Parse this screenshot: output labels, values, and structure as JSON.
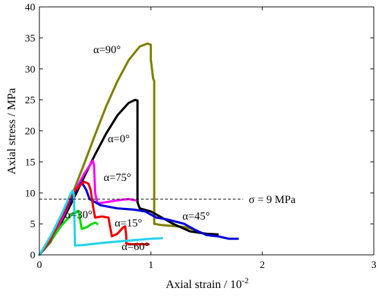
{
  "chart_data": {
    "type": "line",
    "xlabel": "Axial strain / 10",
    "xlabel_exp": "-2",
    "ylabel": "Axial stress / MPa",
    "xlim": [
      0,
      3
    ],
    "ylim": [
      0,
      40
    ],
    "x_ticks": [
      "0",
      "1",
      "2",
      "3"
    ],
    "y_ticks": [
      "0",
      "5",
      "10",
      "15",
      "20",
      "25",
      "30",
      "35",
      "40"
    ],
    "grid": false,
    "reference_line": {
      "y": 9,
      "label": "σ = 9 MPa"
    },
    "series": [
      {
        "name": "α=90°",
        "color": "#808000",
        "points": [
          [
            0,
            0
          ],
          [
            0.1,
            2.2
          ],
          [
            0.2,
            5.8
          ],
          [
            0.3,
            10.0
          ],
          [
            0.4,
            14.6
          ],
          [
            0.5,
            19.4
          ],
          [
            0.6,
            24.0
          ],
          [
            0.7,
            28.0
          ],
          [
            0.8,
            31.4
          ],
          [
            0.9,
            33.6
          ],
          [
            0.97,
            34.1
          ],
          [
            1.0,
            33.9
          ],
          [
            1.0,
            31.5
          ],
          [
            1.02,
            28.5
          ],
          [
            1.03,
            28.0
          ],
          [
            1.03,
            5.0
          ],
          [
            1.1,
            4.8
          ],
          [
            1.3,
            4.5
          ],
          [
            1.4,
            4.0
          ]
        ]
      },
      {
        "name": "α=0°",
        "color": "#000000",
        "points": [
          [
            0,
            0
          ],
          [
            0.1,
            2.1
          ],
          [
            0.2,
            5.3
          ],
          [
            0.3,
            8.8
          ],
          [
            0.4,
            12.5
          ],
          [
            0.5,
            16.2
          ],
          [
            0.6,
            19.6
          ],
          [
            0.7,
            22.5
          ],
          [
            0.8,
            24.5
          ],
          [
            0.86,
            25.0
          ],
          [
            0.88,
            24.9
          ],
          [
            0.88,
            8.5
          ],
          [
            0.9,
            7.5
          ],
          [
            1.0,
            7.0
          ],
          [
            1.1,
            6.0
          ],
          [
            1.2,
            5.0
          ],
          [
            1.35,
            3.8
          ],
          [
            1.5,
            3.4
          ],
          [
            1.6,
            3.3
          ]
        ]
      },
      {
        "name": "α=75°",
        "color": "#ff00ff",
        "points": [
          [
            0,
            0
          ],
          [
            0.1,
            2.3
          ],
          [
            0.2,
            5.7
          ],
          [
            0.3,
            9.6
          ],
          [
            0.4,
            13.0
          ],
          [
            0.48,
            15.2
          ],
          [
            0.49,
            14.5
          ],
          [
            0.5,
            10.0
          ],
          [
            0.52,
            8.3
          ],
          [
            0.6,
            8.5
          ],
          [
            0.7,
            8.8
          ],
          [
            0.8,
            9.0
          ],
          [
            0.86,
            8.8
          ]
        ]
      },
      {
        "name": "α=45°",
        "color": "#0000dd",
        "points": [
          [
            0,
            0
          ],
          [
            0.1,
            2.6
          ],
          [
            0.2,
            6.2
          ],
          [
            0.3,
            9.6
          ],
          [
            0.38,
            11.7
          ],
          [
            0.42,
            10.5
          ],
          [
            0.45,
            9.0
          ],
          [
            0.55,
            8.0
          ],
          [
            0.7,
            7.5
          ],
          [
            0.85,
            7.3
          ],
          [
            0.95,
            7.0
          ],
          [
            1.05,
            6.0
          ],
          [
            1.15,
            5.7
          ],
          [
            1.3,
            5.0
          ],
          [
            1.4,
            4.0
          ],
          [
            1.5,
            3.2
          ],
          [
            1.6,
            3.0
          ],
          [
            1.7,
            2.6
          ],
          [
            1.78,
            2.6
          ]
        ]
      },
      {
        "name": "α=30°",
        "color": "#00dd00",
        "points": [
          [
            0,
            0
          ],
          [
            0.1,
            2.2
          ],
          [
            0.2,
            4.8
          ],
          [
            0.3,
            6.7
          ],
          [
            0.35,
            7.1
          ],
          [
            0.37,
            5.2
          ],
          [
            0.38,
            4.2
          ],
          [
            0.4,
            4.3
          ],
          [
            0.43,
            4.5
          ],
          [
            0.46,
            4.9
          ],
          [
            0.5,
            5.2
          ],
          [
            0.52,
            5.0
          ]
        ]
      },
      {
        "name": "α=15°",
        "color": "#ee0000",
        "points": [
          [
            0,
            0
          ],
          [
            0.1,
            2.4
          ],
          [
            0.2,
            6.2
          ],
          [
            0.3,
            10.0
          ],
          [
            0.4,
            11.8
          ],
          [
            0.44,
            11.5
          ],
          [
            0.46,
            10.5
          ],
          [
            0.48,
            8.0
          ],
          [
            0.5,
            6.0
          ],
          [
            0.56,
            6.2
          ],
          [
            0.62,
            6.0
          ],
          [
            0.65,
            3.0
          ],
          [
            0.7,
            3.4
          ],
          [
            0.75,
            4.4
          ],
          [
            0.77,
            4.6
          ],
          [
            0.78,
            3.0
          ],
          [
            0.78,
            1.8
          ],
          [
            0.85,
            1.7
          ],
          [
            0.95,
            1.7
          ],
          [
            0.98,
            1.7
          ]
        ]
      },
      {
        "name": "α=60°",
        "color": "#22d3ee",
        "points": [
          [
            0,
            0
          ],
          [
            0.1,
            3.0
          ],
          [
            0.2,
            6.6
          ],
          [
            0.28,
            9.8
          ],
          [
            0.3,
            10.4
          ],
          [
            0.31,
            9.6
          ],
          [
            0.32,
            1.5
          ],
          [
            0.4,
            1.6
          ],
          [
            0.6,
            2.0
          ],
          [
            0.8,
            2.3
          ],
          [
            1.0,
            2.6
          ],
          [
            1.1,
            2.7
          ]
        ]
      }
    ],
    "labels": {
      "a90": "α=90°",
      "a0": "α=0°",
      "a75": "α=75°",
      "a45": "α=45°",
      "a30": "α=30°",
      "a15": "α=15°",
      "a60": "α=60°"
    }
  }
}
